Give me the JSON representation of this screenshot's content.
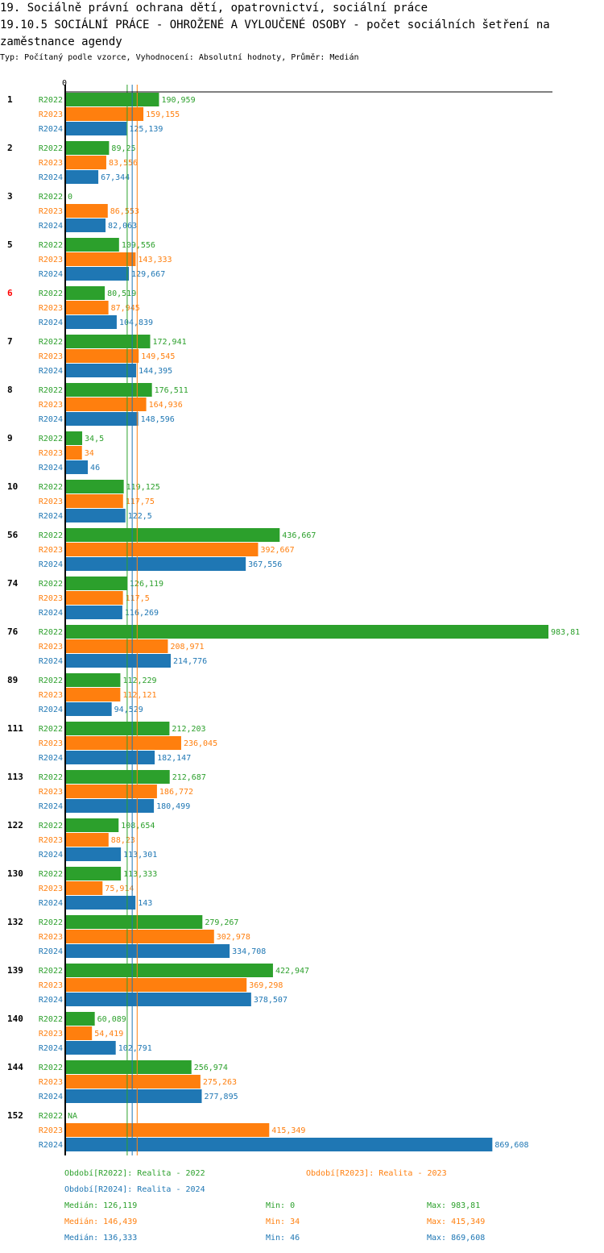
{
  "header": {
    "title": "19. Sociálně právní ochrana dětí, opatrovnictví, sociální práce",
    "subtitle": "19.10.5 SOCIÁLNÍ PRÁCE - OHROŽENÉ A VYLOUČENÉ OSOBY - počet sociálních šetření na zaměstnance agendy",
    "info": "Typ: Počítaný podle vzorce, Vyhodnocení: Absolutní hodnoty, Průměr: Medián"
  },
  "chart_data": {
    "type": "bar",
    "orientation": "horizontal",
    "xlim": [
      0,
      983.81
    ],
    "axis_zero_label": "0",
    "categories": [
      "1",
      "2",
      "3",
      "5",
      "6",
      "7",
      "8",
      "9",
      "10",
      "56",
      "74",
      "76",
      "89",
      "111",
      "113",
      "122",
      "130",
      "132",
      "139",
      "140",
      "144",
      "152"
    ],
    "highlighted_category": "6",
    "highlight_color": "#ff0000",
    "series": [
      {
        "name": "R2022",
        "color": "#2ca02c",
        "values": [
          190.959,
          89.25,
          0,
          109.556,
          80.519,
          172.941,
          176.511,
          34.5,
          119.125,
          436.667,
          126.119,
          983.81,
          112.229,
          212.203,
          212.687,
          108.654,
          113.333,
          279.267,
          422.947,
          60.089,
          256.974,
          null
        ],
        "labels": [
          "190,959",
          "89,25",
          "0",
          "109,556",
          "80,519",
          "172,941",
          "176,511",
          "34,5",
          "119,125",
          "436,667",
          "126,119",
          "983,81",
          "112,229",
          "212,203",
          "212,687",
          "108,654",
          "113,333",
          "279,267",
          "422,947",
          "60,089",
          "256,974",
          "NA"
        ]
      },
      {
        "name": "R2023",
        "color": "#ff7f0e",
        "values": [
          159.155,
          83.556,
          86.553,
          143.333,
          87.945,
          149.545,
          164.936,
          34,
          117.75,
          392.667,
          117.5,
          208.971,
          112.121,
          236.045,
          186.772,
          88.23,
          75.914,
          302.978,
          369.298,
          54.419,
          275.263,
          415.349
        ],
        "labels": [
          "159,155",
          "83,556",
          "86,553",
          "143,333",
          "87,945",
          "149,545",
          "164,936",
          "34",
          "117,75",
          "392,667",
          "117,5",
          "208,971",
          "112,121",
          "236,045",
          "186,772",
          "88,23",
          "75,914",
          "302,978",
          "369,298",
          "54,419",
          "275,263",
          "415,349"
        ]
      },
      {
        "name": "R2024",
        "color": "#1f77b4",
        "values": [
          125.139,
          67.344,
          82.063,
          129.667,
          104.839,
          144.395,
          148.596,
          46,
          122.5,
          367.556,
          116.269,
          214.776,
          94.529,
          182.147,
          180.499,
          113.301,
          143,
          334.708,
          378.507,
          102.791,
          277.895,
          869.608
        ],
        "labels": [
          "125,139",
          "67,344",
          "82,063",
          "129,667",
          "104,839",
          "144,395",
          "148,596",
          "46",
          "122,5",
          "367,556",
          "116,269",
          "214,776",
          "94,529",
          "182,147",
          "180,499",
          "113,301",
          "143",
          "334,708",
          "378,507",
          "102,791",
          "277,895",
          "869,608"
        ]
      }
    ],
    "median_lines": [
      126.119,
      146.439,
      136.333
    ],
    "legend": [
      {
        "text": "Období[R2022]: Realita - 2022",
        "color": "#2ca02c"
      },
      {
        "text": "Období[R2023]: Realita - 2023",
        "color": "#ff7f0e"
      },
      {
        "text": "Období[R2024]: Realita - 2024",
        "color": "#1f77b4"
      }
    ],
    "stats": [
      {
        "median": "Medián: 126,119",
        "min": "Min: 0",
        "max": "Max: 983,81",
        "color": "#2ca02c"
      },
      {
        "median": "Medián: 146,439",
        "min": "Min: 34",
        "max": "Max: 415,349",
        "color": "#ff7f0e"
      },
      {
        "median": "Medián: 136,333",
        "min": "Min: 46",
        "max": "Max: 869,608",
        "color": "#1f77b4"
      }
    ]
  }
}
